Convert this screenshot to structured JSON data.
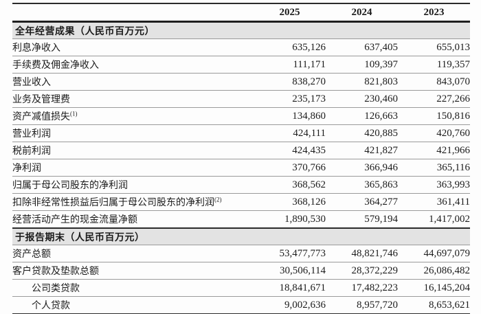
{
  "document": {
    "type": "annual-report-financial-highlights-table",
    "year_headers": [
      "2025",
      "2024",
      "2023"
    ],
    "sections": [
      {
        "title": "全年经营成果（人民币百万元）",
        "rows": [
          {
            "label": "利息净收入",
            "sup": "",
            "indent": false,
            "values": [
              "635,126",
              "637,405",
              "655,013"
            ]
          },
          {
            "label": "手续费及佣金净收入",
            "sup": "",
            "indent": false,
            "values": [
              "111,171",
              "109,397",
              "119,357"
            ]
          },
          {
            "label": "营业收入",
            "sup": "",
            "indent": false,
            "values": [
              "838,270",
              "821,803",
              "843,070"
            ]
          },
          {
            "label": "业务及管理费",
            "sup": "",
            "indent": false,
            "values": [
              "235,173",
              "230,460",
              "227,266"
            ]
          },
          {
            "label": "资产减值损失",
            "sup": "(1)",
            "indent": false,
            "values": [
              "134,860",
              "126,663",
              "150,816"
            ]
          },
          {
            "label": "营业利润",
            "sup": "",
            "indent": false,
            "values": [
              "424,111",
              "420,885",
              "420,760"
            ]
          },
          {
            "label": "税前利润",
            "sup": "",
            "indent": false,
            "values": [
              "424,435",
              "421,827",
              "421,966"
            ]
          },
          {
            "label": "净利润",
            "sup": "",
            "indent": false,
            "values": [
              "370,766",
              "366,946",
              "365,116"
            ]
          },
          {
            "label": "归属于母公司股东的净利润",
            "sup": "",
            "indent": false,
            "values": [
              "368,562",
              "365,863",
              "363,993"
            ]
          },
          {
            "label": "扣除非经常性损益后归属于母公司股东的净利润",
            "sup": "(2)",
            "indent": false,
            "values": [
              "368,126",
              "364,277",
              "361,411"
            ]
          },
          {
            "label": "经营活动产生的现金流量净额",
            "sup": "",
            "indent": false,
            "values": [
              "1,890,530",
              "579,194",
              "1,417,002"
            ]
          }
        ]
      },
      {
        "title": "于报告期末（人民币百万元）",
        "rows": [
          {
            "label": "资产总额",
            "sup": "",
            "indent": false,
            "values": [
              "53,477,773",
              "48,821,746",
              "44,697,079"
            ]
          },
          {
            "label": "客户贷款及垫款总额",
            "sup": "",
            "indent": false,
            "values": [
              "30,506,114",
              "28,372,229",
              "26,086,482"
            ]
          },
          {
            "label": "公司类贷款",
            "sup": "",
            "indent": true,
            "values": [
              "18,841,671",
              "17,482,223",
              "16,145,204"
            ]
          },
          {
            "label": "个人贷款",
            "sup": "",
            "indent": true,
            "values": [
              "9,002,636",
              "8,957,720",
              "8,653,621"
            ]
          }
        ]
      }
    ],
    "colors": {
      "background": "#fdfdfd",
      "section_header_bg": "#e3e3e3",
      "thin_rule": "#9a9a9a",
      "thick_rule": "#2a2a2a",
      "text": "#1b1b1b"
    }
  }
}
